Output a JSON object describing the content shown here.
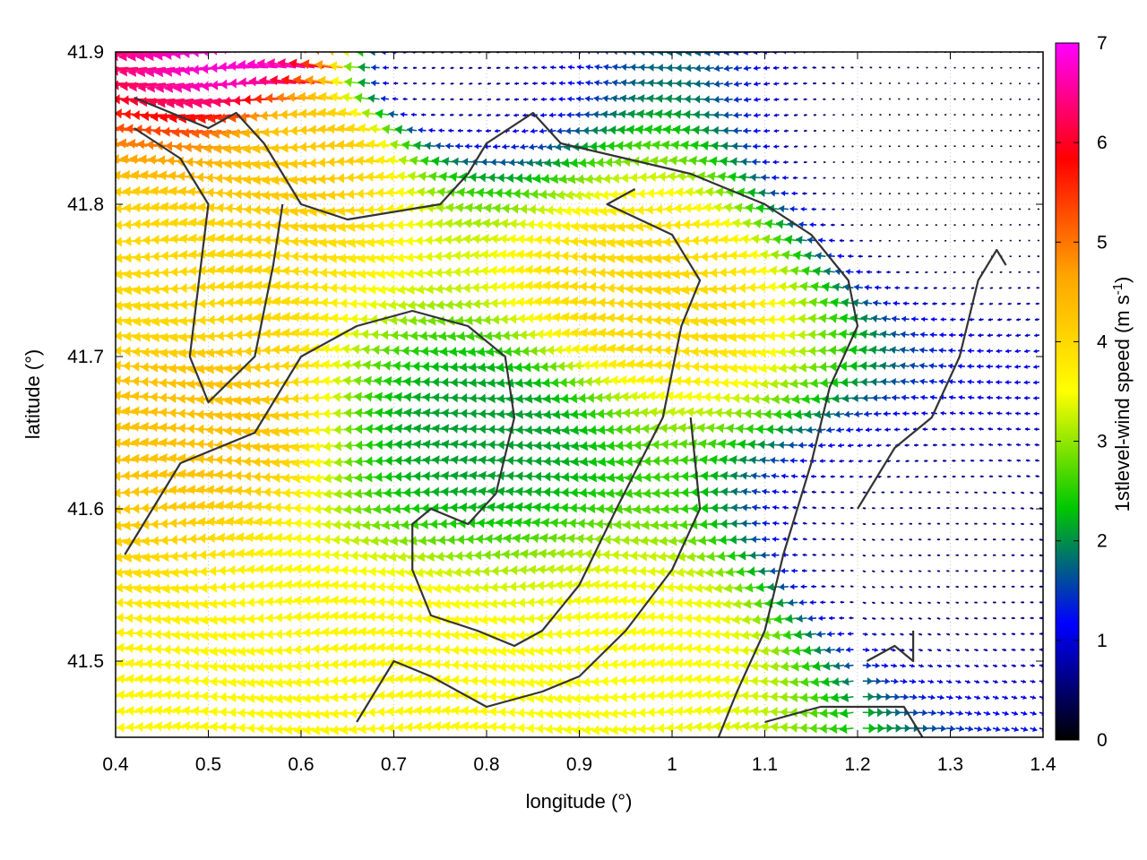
{
  "chart_data": {
    "type": "vector-field",
    "xlabel": "longitude (°)",
    "ylabel": "latitude (°)",
    "colorbar_label": "1stlevel-wind speed (m s",
    "colorbar_label_superscript": "-1",
    "colorbar_label_close": ")",
    "xlim": [
      0.4,
      1.4
    ],
    "ylim": [
      41.45,
      41.9
    ],
    "xticks": [
      "0.4",
      "0.5",
      "0.6",
      "0.7",
      "0.8",
      "0.9",
      "1",
      "1.1",
      "1.2",
      "1.3",
      "1.4"
    ],
    "yticks": [
      "41.5",
      "41.6",
      "41.7",
      "41.8",
      "41.9"
    ],
    "colorbar_range": [
      0,
      7
    ],
    "colorbar_ticks": [
      "0",
      "1",
      "2",
      "3",
      "4",
      "5",
      "6",
      "7"
    ],
    "colormap": [
      "#000000",
      "#0000ff",
      "#00c800",
      "#ffff00",
      "#ffa500",
      "#ff0000",
      "#ff00ff"
    ],
    "grid": "dotted",
    "vector_direction": "predominantly westward (easterly wind)",
    "speed_regions": [
      {
        "lon": 0.47,
        "lat": 41.75,
        "speed": 4.0
      },
      {
        "lon": 0.63,
        "lat": 41.84,
        "speed": 4.2
      },
      {
        "lon": 0.99,
        "lat": 41.74,
        "speed": 4.0
      },
      {
        "lon": 0.5,
        "lat": 41.66,
        "speed": 4.3
      },
      {
        "lon": 0.7,
        "lat": 41.5,
        "speed": 3.6
      },
      {
        "lon": 1.0,
        "lat": 41.51,
        "speed": 3.5
      },
      {
        "lon": 0.8,
        "lat": 41.65,
        "speed": 2.1
      },
      {
        "lon": 1.28,
        "lat": 41.82,
        "speed": 0.2
      },
      {
        "lon": 1.25,
        "lat": 41.57,
        "speed": 0.5
      },
      {
        "lon": 0.75,
        "lat": 41.88,
        "speed": 0.6
      },
      {
        "lon": 0.56,
        "lat": 41.9,
        "speed": 6.8
      }
    ],
    "contours": [
      [
        [
          0.42,
          41.87
        ],
        [
          0.5,
          41.85
        ],
        [
          0.53,
          41.86
        ],
        [
          0.56,
          41.84
        ],
        [
          0.58,
          41.82
        ],
        [
          0.6,
          41.8
        ],
        [
          0.65,
          41.79
        ],
        [
          0.75,
          41.8
        ],
        [
          0.78,
          41.82
        ],
        [
          0.8,
          41.84
        ],
        [
          0.85,
          41.86
        ],
        [
          0.88,
          41.84
        ],
        [
          0.95,
          41.83
        ],
        [
          1.02,
          41.82
        ],
        [
          1.1,
          41.8
        ],
        [
          1.15,
          41.78
        ],
        [
          1.19,
          41.75
        ],
        [
          1.2,
          41.72
        ],
        [
          1.17,
          41.68
        ],
        [
          1.15,
          41.63
        ],
        [
          1.12,
          41.57
        ],
        [
          1.1,
          41.52
        ],
        [
          1.07,
          41.48
        ],
        [
          1.05,
          41.45
        ]
      ],
      [
        [
          0.42,
          41.85
        ],
        [
          0.47,
          41.83
        ],
        [
          0.5,
          41.8
        ],
        [
          0.49,
          41.75
        ],
        [
          0.48,
          41.7
        ],
        [
          0.5,
          41.67
        ],
        [
          0.55,
          41.7
        ],
        [
          0.57,
          41.76
        ],
        [
          0.58,
          41.8
        ]
      ],
      [
        [
          0.41,
          41.57
        ],
        [
          0.47,
          41.63
        ],
        [
          0.55,
          41.65
        ],
        [
          0.6,
          41.7
        ],
        [
          0.66,
          41.72
        ],
        [
          0.72,
          41.73
        ],
        [
          0.78,
          41.72
        ],
        [
          0.82,
          41.7
        ],
        [
          0.83,
          41.66
        ],
        [
          0.81,
          41.61
        ],
        [
          0.78,
          41.59
        ],
        [
          0.74,
          41.6
        ],
        [
          0.72,
          41.59
        ],
        [
          0.72,
          41.56
        ],
        [
          0.74,
          41.53
        ],
        [
          0.79,
          41.52
        ],
        [
          0.83,
          41.51
        ],
        [
          0.86,
          41.52
        ],
        [
          0.9,
          41.55
        ],
        [
          0.94,
          41.6
        ],
        [
          0.99,
          41.66
        ],
        [
          1.01,
          41.72
        ],
        [
          1.03,
          41.75
        ],
        [
          1.0,
          41.78
        ],
        [
          0.93,
          41.8
        ],
        [
          0.96,
          41.81
        ]
      ],
      [
        [
          0.66,
          41.46
        ],
        [
          0.7,
          41.5
        ],
        [
          0.74,
          41.49
        ],
        [
          0.8,
          41.47
        ],
        [
          0.86,
          41.48
        ],
        [
          0.9,
          41.49
        ],
        [
          0.95,
          41.52
        ],
        [
          1.0,
          41.56
        ],
        [
          1.03,
          41.6
        ],
        [
          1.02,
          41.66
        ]
      ],
      [
        [
          1.2,
          41.6
        ],
        [
          1.24,
          41.64
        ],
        [
          1.28,
          41.66
        ],
        [
          1.31,
          41.7
        ],
        [
          1.33,
          41.75
        ],
        [
          1.35,
          41.77
        ],
        [
          1.36,
          41.76
        ]
      ],
      [
        [
          1.1,
          41.46
        ],
        [
          1.16,
          41.47
        ],
        [
          1.2,
          41.47
        ],
        [
          1.25,
          41.47
        ],
        [
          1.27,
          41.45
        ]
      ],
      [
        [
          1.21,
          41.5
        ],
        [
          1.24,
          41.51
        ],
        [
          1.26,
          41.5
        ],
        [
          1.26,
          41.52
        ]
      ]
    ]
  }
}
